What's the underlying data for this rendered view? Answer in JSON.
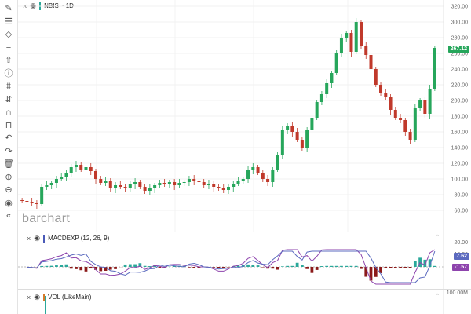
{
  "toolbar": {
    "tools": [
      {
        "name": "pencil-icon",
        "glyph": "✎"
      },
      {
        "name": "lines-icon",
        "glyph": "☰"
      },
      {
        "name": "diamond-icon",
        "glyph": "◇"
      },
      {
        "name": "list-icon",
        "glyph": "≡"
      },
      {
        "name": "arrow-up-icon",
        "glyph": "⇧"
      },
      {
        "name": "info-icon",
        "glyph": "ⓘ"
      },
      {
        "name": "filter-icon",
        "glyph": "⩩"
      },
      {
        "name": "align-icon",
        "glyph": "⇵"
      },
      {
        "name": "magnet-icon",
        "glyph": "∩"
      },
      {
        "name": "lock-icon",
        "glyph": "⊓"
      },
      {
        "name": "undo-icon",
        "glyph": "↶"
      },
      {
        "name": "redo-icon",
        "glyph": "↷"
      },
      {
        "name": "trash-icon",
        "glyph": "🗑"
      },
      {
        "name": "zoom-in-icon",
        "glyph": "⊕"
      },
      {
        "name": "zoom-out-icon",
        "glyph": "⊖"
      },
      {
        "name": "eye-icon",
        "glyph": "◉"
      },
      {
        "name": "collapse-icon",
        "glyph": "«"
      }
    ]
  },
  "main": {
    "symbol": "NBIS",
    "interval": "1D",
    "watermark": "barchart",
    "price_tag": "267.12",
    "price_tag_color": "#26a65b",
    "y_ticks": [
      "320.00",
      "300.00",
      "280.00",
      "260.00",
      "240.00",
      "220.00",
      "200.00",
      "180.00",
      "160.00",
      "140.00",
      "120.00",
      "100.00",
      "80.00",
      "60.00"
    ]
  },
  "macd": {
    "title": "MACDEXP (12, 26, 9)",
    "y_ticks": [
      "20.00",
      "10.00"
    ],
    "tag_macd": "7.62",
    "tag_signal": "-1.57"
  },
  "volume": {
    "title": "VOL (LikeMain)",
    "y_tick": "100.00M"
  },
  "colors": {
    "up": "#26a65b",
    "down": "#c0392b",
    "macd_line": "#8e44ad",
    "signal_line": "#5b6abf",
    "hist_up": "#2aa89a",
    "hist_down": "#8b1a1a"
  },
  "chart_data": {
    "type": "candlestick",
    "symbol": "NBIS",
    "interval": "1D",
    "ylim": [
      60,
      320
    ],
    "approx_closes": [
      72,
      71,
      70,
      68,
      90,
      92,
      95,
      100,
      102,
      108,
      115,
      118,
      112,
      115,
      110,
      100,
      95,
      98,
      88,
      92,
      90,
      88,
      93,
      96,
      90,
      85,
      88,
      92,
      95,
      94,
      96,
      92,
      95,
      96,
      100,
      98,
      96,
      92,
      94,
      90,
      88,
      86,
      90,
      94,
      98,
      100,
      112,
      115,
      108,
      100,
      96,
      112,
      130,
      162,
      168,
      160,
      150,
      140,
      162,
      178,
      198,
      208,
      222,
      235,
      260,
      280,
      286,
      262,
      300,
      270,
      258,
      240,
      220,
      210,
      205,
      188,
      178,
      175,
      160,
      150,
      190,
      200,
      183,
      215,
      267
    ]
  }
}
